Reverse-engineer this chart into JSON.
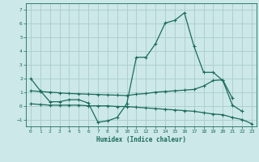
{
  "xlabel": "Humidex (Indice chaleur)",
  "xlim": [
    -0.5,
    23.5
  ],
  "ylim": [
    -1.5,
    7.5
  ],
  "yticks": [
    -1,
    0,
    1,
    2,
    3,
    4,
    5,
    6,
    7
  ],
  "xticks": [
    0,
    1,
    2,
    3,
    4,
    5,
    6,
    7,
    8,
    9,
    10,
    11,
    12,
    13,
    14,
    15,
    16,
    17,
    18,
    19,
    20,
    21,
    22,
    23
  ],
  "bg_color": "#cce8e8",
  "grid_color": "#aacccc",
  "line_color": "#1a6b5a",
  "line1_x": [
    0,
    1,
    2,
    3,
    4,
    5,
    6,
    7,
    8,
    9,
    10,
    11,
    12,
    13,
    14,
    15,
    16,
    17,
    18,
    19,
    20,
    21,
    22
  ],
  "line1_y": [
    2.0,
    1.1,
    0.3,
    0.3,
    0.45,
    0.45,
    0.2,
    -1.2,
    -1.1,
    -0.85,
    0.15,
    3.55,
    3.55,
    4.55,
    6.05,
    6.25,
    6.8,
    4.35,
    2.45,
    2.45,
    1.85,
    0.05,
    -0.4
  ],
  "line2_x": [
    0,
    1,
    2,
    3,
    4,
    5,
    6,
    7,
    8,
    9,
    10,
    11,
    12,
    13,
    14,
    15,
    16,
    17,
    18,
    19,
    20,
    21,
    22,
    23
  ],
  "line2_y": [
    1.1,
    1.05,
    1.0,
    0.95,
    0.9,
    0.88,
    0.85,
    0.83,
    0.8,
    0.78,
    0.75,
    0.85,
    0.9,
    1.0,
    1.05,
    1.1,
    1.15,
    1.2,
    1.45,
    1.85,
    1.9,
    0.55,
    null,
    null
  ],
  "line3_x": [
    0,
    1,
    2,
    3,
    4,
    5,
    6,
    7,
    8,
    9,
    10,
    11,
    12,
    13,
    14,
    15,
    16,
    17,
    18,
    19,
    20,
    21,
    22,
    23
  ],
  "line3_y": [
    0.15,
    0.1,
    0.05,
    0.05,
    0.05,
    0.05,
    0.0,
    0.0,
    0.0,
    -0.05,
    -0.05,
    -0.1,
    -0.15,
    -0.2,
    -0.25,
    -0.3,
    -0.35,
    -0.4,
    -0.5,
    -0.6,
    -0.65,
    -0.85,
    -1.0,
    -1.3
  ]
}
